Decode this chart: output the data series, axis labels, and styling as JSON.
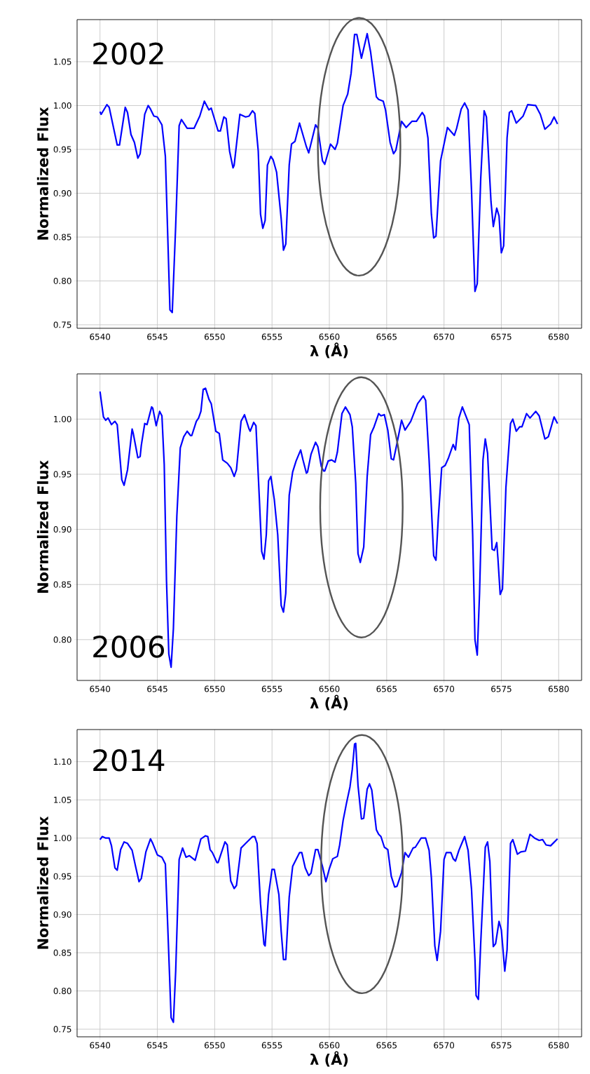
{
  "chart_data": [
    {
      "type": "line",
      "xlabel": "λ (Å)",
      "ylabel": "Normalized Flux",
      "annotations": [
        "2002"
      ],
      "grid": true,
      "xlim": [
        6538,
        6582
      ],
      "ylim": [
        0.746,
        1.098
      ],
      "xticks": [
        6540,
        6545,
        6550,
        6555,
        6560,
        6565,
        6570,
        6575,
        6580
      ],
      "yticks": [
        {
          "value": 0.75,
          "label": "0.75"
        },
        {
          "value": 0.8,
          "label": "0.80"
        },
        {
          "value": 0.85,
          "label": "0.85"
        },
        {
          "value": 0.9,
          "label": "0.90"
        },
        {
          "value": 0.95,
          "label": "0.95"
        },
        {
          "value": 1.0,
          "label": "1.00"
        },
        {
          "value": 1.05,
          "label": "1.05"
        }
      ],
      "x": [
        6540,
        6540.1,
        6540.6,
        6540.8,
        6541.5,
        6541.7,
        6542.2,
        6542.4,
        6542.7,
        6543.0,
        6543.3,
        6543.5,
        6543.9,
        6544.2,
        6544.4,
        6544.7,
        6545.0,
        6545.4,
        6545.7,
        6546.1,
        6546.3,
        6546.6,
        6546.9,
        6547.1,
        6547.6,
        6548.0,
        6548.2,
        6548.7,
        6549.1,
        6549.5,
        6549.7,
        6550.3,
        6550.5,
        6550.8,
        6551.0,
        6551.3,
        6551.6,
        6551.7,
        6552.2,
        6552.7,
        6553.0,
        6553.3,
        6553.5,
        6553.8,
        6554.0,
        6554.2,
        6554.4,
        6554.6,
        6554.9,
        6555.1,
        6555.4,
        6555.8,
        6556.0,
        6556.2,
        6556.5,
        6556.7,
        6557.0,
        6557.4,
        6558.0,
        6558.2,
        6558.8,
        6559.0,
        6559.4,
        6559.6,
        6560.1,
        6560.5,
        6560.7,
        6561.2,
        6561.6,
        6561.9,
        6562.2,
        6562.4,
        6562.8,
        6563.3,
        6563.6,
        6564.1,
        6564.3,
        6564.7,
        6564.9,
        6565.3,
        6565.6,
        6565.8,
        6566.3,
        6566.7,
        6567.2,
        6567.6,
        6568.1,
        6568.3,
        6568.6,
        6568.9,
        6569.1,
        6569.3,
        6569.7,
        6570.3,
        6570.5,
        6570.9,
        6571.1,
        6571.5,
        6571.8,
        6572.1,
        6572.4,
        6572.7,
        6572.9,
        6573.2,
        6573.5,
        6573.7,
        6574.1,
        6574.3,
        6574.6,
        6574.8,
        6575.0,
        6575.2,
        6575.5,
        6575.7,
        6575.9,
        6576.3,
        6576.9,
        6577.3,
        6578.0,
        6578.4,
        6578.8,
        6579.3,
        6579.6,
        6579.9
      ],
      "series": [
        {
          "color": "#0000ff",
          "values": [
            0.993,
            0.99,
            1.001,
            0.998,
            0.955,
            0.955,
            0.998,
            0.992,
            0.967,
            0.958,
            0.94,
            0.945,
            0.99,
            1.0,
            0.996,
            0.988,
            0.987,
            0.978,
            0.942,
            0.767,
            0.764,
            0.863,
            0.977,
            0.984,
            0.974,
            0.974,
            0.974,
            0.988,
            1.005,
            0.995,
            0.997,
            0.971,
            0.971,
            0.987,
            0.985,
            0.948,
            0.929,
            0.932,
            0.99,
            0.987,
            0.988,
            0.994,
            0.991,
            0.948,
            0.876,
            0.86,
            0.869,
            0.932,
            0.942,
            0.938,
            0.924,
            0.871,
            0.835,
            0.842,
            0.932,
            0.956,
            0.959,
            0.98,
            0.953,
            0.946,
            0.978,
            0.974,
            0.937,
            0.933,
            0.956,
            0.95,
            0.957,
            1.0,
            1.013,
            1.037,
            1.081,
            1.081,
            1.054,
            1.082,
            1.061,
            1.01,
            1.007,
            1.005,
            0.995,
            0.958,
            0.945,
            0.949,
            0.982,
            0.975,
            0.982,
            0.982,
            0.992,
            0.988,
            0.963,
            0.876,
            0.849,
            0.851,
            0.937,
            0.975,
            0.972,
            0.966,
            0.974,
            0.996,
            1.003,
            0.995,
            0.903,
            0.788,
            0.797,
            0.916,
            0.994,
            0.987,
            0.89,
            0.862,
            0.883,
            0.874,
            0.832,
            0.84,
            0.963,
            0.992,
            0.994,
            0.98,
            0.988,
            1.001,
            1.0,
            0.99,
            0.973,
            0.979,
            0.987,
            0.979
          ]
        }
      ]
    },
    {
      "type": "line",
      "xlabel": "λ (Å)",
      "ylabel": "Normalized Flux",
      "annotations": [
        "2006"
      ],
      "grid": true,
      "xlim": [
        6538,
        6582
      ],
      "ylim": [
        0.763,
        1.041
      ],
      "xticks": [
        6540,
        6545,
        6550,
        6555,
        6560,
        6565,
        6570,
        6575,
        6580
      ],
      "yticks": [
        {
          "value": 0.8,
          "label": "0.80"
        },
        {
          "value": 0.85,
          "label": "0.85"
        },
        {
          "value": 0.9,
          "label": "0.90"
        },
        {
          "value": 0.95,
          "label": "0.95"
        },
        {
          "value": 1.0,
          "label": "1.00"
        }
      ],
      "x": [
        6540,
        6540.3,
        6540.5,
        6540.7,
        6541.0,
        6541.3,
        6541.5,
        6541.9,
        6542.1,
        6542.4,
        6542.8,
        6542.9,
        6543.3,
        6543.5,
        6543.6,
        6543.9,
        6544.1,
        6544.5,
        6544.6,
        6544.9,
        6545.2,
        6545.4,
        6545.6,
        6545.8,
        6546.0,
        6546.2,
        6546.4,
        6546.7,
        6547.0,
        6547.3,
        6547.6,
        6547.9,
        6548.0,
        6548.4,
        6548.6,
        6548.8,
        6549.0,
        6549.2,
        6549.5,
        6549.7,
        6550.1,
        6550.4,
        6550.7,
        6551.1,
        6551.4,
        6551.7,
        6551.9,
        6552.3,
        6552.6,
        6553.0,
        6553.1,
        6553.4,
        6553.6,
        6553.9,
        6554.1,
        6554.3,
        6554.5,
        6554.7,
        6554.9,
        6555.2,
        6555.5,
        6555.8,
        6556.0,
        6556.2,
        6556.5,
        6556.8,
        6557.1,
        6557.5,
        6557.7,
        6558.0,
        6558.1,
        6558.4,
        6558.8,
        6559.0,
        6559.3,
        6559.5,
        6559.6,
        6559.9,
        6560.2,
        6560.5,
        6560.7,
        6561.1,
        6561.4,
        6561.8,
        6562.0,
        6562.3,
        6562.5,
        6562.7,
        6563.0,
        6563.3,
        6563.6,
        6563.9,
        6564.3,
        6564.5,
        6564.8,
        6565.1,
        6565.4,
        6565.6,
        6565.9,
        6566.3,
        6566.6,
        6567.1,
        6567.7,
        6568.2,
        6568.4,
        6568.7,
        6569.1,
        6569.3,
        6569.5,
        6569.8,
        6570.1,
        6570.4,
        6570.8,
        6571.0,
        6571.3,
        6571.6,
        6571.9,
        6572.2,
        6572.5,
        6572.7,
        6572.9,
        6573.1,
        6573.4,
        6573.6,
        6573.8,
        6574.2,
        6574.4,
        6574.6,
        6574.7,
        6574.9,
        6575.1,
        6575.4,
        6575.8,
        6576.0,
        6576.3,
        6576.6,
        6576.8,
        6577.2,
        6577.5,
        6578.0,
        6578.3,
        6578.8,
        6579.1,
        6579.6,
        6579.9
      ],
      "series": [
        {
          "color": "#0000ff",
          "values": [
            1.025,
            1.002,
            0.999,
            1.001,
            0.995,
            0.998,
            0.995,
            0.945,
            0.94,
            0.954,
            0.991,
            0.987,
            0.965,
            0.966,
            0.976,
            0.996,
            0.995,
            1.011,
            1.01,
            0.994,
            1.007,
            1.003,
            0.959,
            0.853,
            0.787,
            0.775,
            0.81,
            0.912,
            0.974,
            0.984,
            0.989,
            0.985,
            0.985,
            0.998,
            1.001,
            1.007,
            1.027,
            1.028,
            1.018,
            1.014,
            0.989,
            0.987,
            0.963,
            0.96,
            0.956,
            0.948,
            0.954,
            0.998,
            1.004,
            0.991,
            0.989,
            0.997,
            0.994,
            0.927,
            0.88,
            0.873,
            0.895,
            0.944,
            0.948,
            0.927,
            0.895,
            0.831,
            0.825,
            0.842,
            0.931,
            0.952,
            0.962,
            0.972,
            0.963,
            0.951,
            0.952,
            0.968,
            0.979,
            0.975,
            0.957,
            0.953,
            0.953,
            0.962,
            0.963,
            0.961,
            0.97,
            1.005,
            1.011,
            1.004,
            0.993,
            0.942,
            0.878,
            0.87,
            0.884,
            0.948,
            0.986,
            0.993,
            1.005,
            1.003,
            1.004,
            0.99,
            0.964,
            0.963,
            0.978,
            0.999,
            0.99,
            0.998,
            1.014,
            1.021,
            1.017,
            0.963,
            0.876,
            0.872,
            0.91,
            0.956,
            0.958,
            0.965,
            0.977,
            0.972,
            1.001,
            1.011,
            1.003,
            0.995,
            0.895,
            0.8,
            0.786,
            0.842,
            0.963,
            0.982,
            0.969,
            0.882,
            0.881,
            0.888,
            0.874,
            0.841,
            0.846,
            0.938,
            0.996,
            1.0,
            0.989,
            0.993,
            0.993,
            1.005,
            1.001,
            1.007,
            1.003,
            0.982,
            0.984,
            1.002,
            0.996
          ]
        }
      ]
    },
    {
      "type": "line",
      "xlabel": "λ (Å)",
      "ylabel": "Normalized Flux",
      "annotations": [
        "2014"
      ],
      "grid": true,
      "xlim": [
        6538,
        6582
      ],
      "ylim": [
        0.74,
        1.142
      ],
      "xticks": [
        6540,
        6545,
        6550,
        6555,
        6560,
        6565,
        6570,
        6575,
        6580
      ],
      "yticks": [
        {
          "value": 0.75,
          "label": "0.75"
        },
        {
          "value": 0.8,
          "label": "0.80"
        },
        {
          "value": 0.85,
          "label": "0.85"
        },
        {
          "value": 0.9,
          "label": "0.90"
        },
        {
          "value": 0.95,
          "label": "0.95"
        },
        {
          "value": 1.0,
          "label": "1.00"
        },
        {
          "value": 1.05,
          "label": "1.05"
        },
        {
          "value": 1.1,
          "label": "1.10"
        }
      ],
      "x": [
        6540.0,
        6540.2,
        6540.5,
        6540.8,
        6541.0,
        6541.3,
        6541.5,
        6541.8,
        6542.1,
        6542.4,
        6542.8,
        6543.1,
        6543.4,
        6543.6,
        6544.0,
        6544.4,
        6544.6,
        6545.0,
        6545.4,
        6545.7,
        6545.9,
        6546.2,
        6546.4,
        6546.6,
        6546.9,
        6547.2,
        6547.5,
        6547.8,
        6548.3,
        6548.8,
        6549.2,
        6549.4,
        6549.6,
        6549.8,
        6550.2,
        6550.3,
        6550.9,
        6551.1,
        6551.4,
        6551.7,
        6551.9,
        6552.3,
        6552.7,
        6553.3,
        6553.5,
        6553.7,
        6554.0,
        6554.3,
        6554.4,
        6554.7,
        6555.0,
        6555.2,
        6555.6,
        6555.8,
        6556.0,
        6556.2,
        6556.5,
        6556.8,
        6557.1,
        6557.4,
        6557.6,
        6557.9,
        6558.2,
        6558.4,
        6558.8,
        6559.0,
        6559.4,
        6559.7,
        6560.0,
        6560.3,
        6560.7,
        6560.9,
        6561.2,
        6561.5,
        6561.8,
        6562.0,
        6562.2,
        6562.3,
        6562.5,
        6562.8,
        6563.0,
        6563.3,
        6563.5,
        6563.7,
        6564.1,
        6564.3,
        6564.5,
        6564.8,
        6565.1,
        6565.4,
        6565.7,
        6565.9,
        6566.3,
        6566.6,
        6566.9,
        6567.3,
        6567.5,
        6568.0,
        6568.4,
        6568.7,
        6568.9,
        6569.2,
        6569.4,
        6569.7,
        6570.0,
        6570.2,
        6570.6,
        6570.8,
        6571.0,
        6571.3,
        6571.8,
        6572.1,
        6572.4,
        6572.7,
        6572.8,
        6573.0,
        6573.2,
        6573.6,
        6573.8,
        6574.0,
        6574.2,
        6574.3,
        6574.5,
        6574.8,
        6575.0,
        6575.3,
        6575.5,
        6575.8,
        6576.0,
        6576.4,
        6576.7,
        6577.1,
        6577.5,
        6577.9,
        6578.3,
        6578.6,
        6578.9,
        6579.3,
        6579.9
      ],
      "series": [
        {
          "color": "#0000ff",
          "values": [
            0.998,
            1.002,
            1.0,
            1.0,
            0.99,
            0.961,
            0.958,
            0.985,
            0.995,
            0.993,
            0.984,
            0.963,
            0.943,
            0.947,
            0.982,
            0.999,
            0.993,
            0.978,
            0.975,
            0.966,
            0.887,
            0.765,
            0.759,
            0.826,
            0.972,
            0.987,
            0.975,
            0.977,
            0.971,
            0.999,
            1.003,
            1.002,
            0.985,
            0.981,
            0.968,
            0.968,
            0.995,
            0.991,
            0.944,
            0.934,
            0.938,
            0.987,
            0.993,
            1.002,
            1.002,
            0.993,
            0.914,
            0.861,
            0.859,
            0.926,
            0.959,
            0.959,
            0.926,
            0.878,
            0.841,
            0.841,
            0.923,
            0.963,
            0.972,
            0.981,
            0.981,
            0.961,
            0.951,
            0.954,
            0.985,
            0.985,
            0.963,
            0.943,
            0.96,
            0.973,
            0.976,
            0.991,
            1.023,
            1.046,
            1.067,
            1.09,
            1.123,
            1.124,
            1.069,
            1.025,
            1.026,
            1.064,
            1.071,
            1.063,
            1.011,
            1.005,
            1.002,
            0.988,
            0.985,
            0.95,
            0.936,
            0.937,
            0.955,
            0.981,
            0.975,
            0.987,
            0.988,
            1.0,
            1.0,
            0.984,
            0.948,
            0.859,
            0.84,
            0.878,
            0.972,
            0.981,
            0.981,
            0.973,
            0.97,
            0.984,
            1.002,
            0.984,
            0.933,
            0.841,
            0.794,
            0.789,
            0.862,
            0.988,
            0.995,
            0.969,
            0.887,
            0.858,
            0.862,
            0.891,
            0.88,
            0.826,
            0.854,
            0.993,
            0.998,
            0.979,
            0.982,
            0.983,
            1.005,
            1.0,
            0.997,
            0.998,
            0.991,
            0.99,
            0.999
          ]
        }
      ]
    }
  ]
}
